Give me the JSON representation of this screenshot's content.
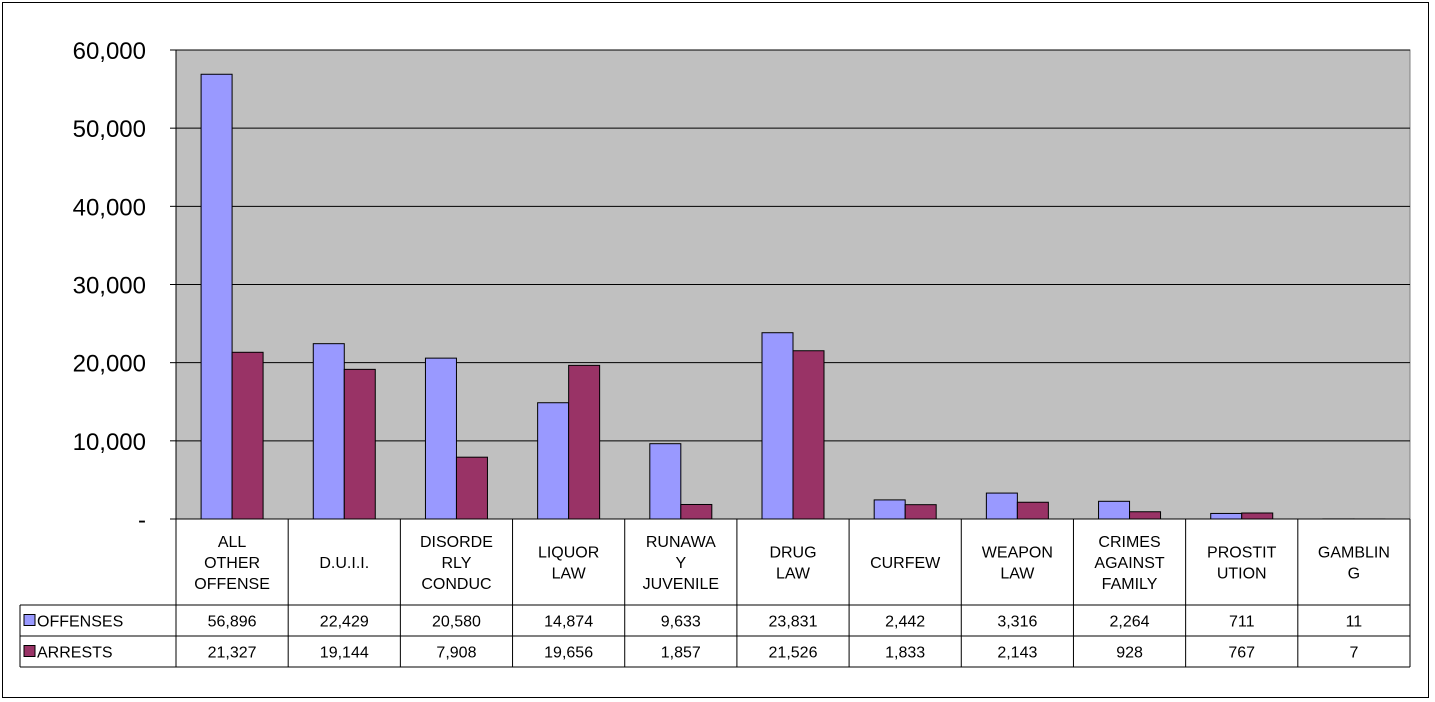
{
  "chart_data": {
    "type": "bar",
    "title": "",
    "xlabel": "",
    "ylabel": "",
    "ylim": [
      0,
      60000
    ],
    "yticks": [
      0,
      10000,
      20000,
      30000,
      40000,
      50000,
      60000
    ],
    "ytick_labels": [
      "-",
      "10,000",
      "20,000",
      "30,000",
      "40,000",
      "50,000",
      "60,000"
    ],
    "grid": true,
    "plot_background": "#c0c0c0",
    "data_table": true,
    "categories": [
      [
        "ALL",
        "OTHER",
        "OFFENSE"
      ],
      [
        "D.U.I.I."
      ],
      [
        "DISORDE",
        "RLY",
        "CONDUC"
      ],
      [
        "LIQUOR",
        "LAW"
      ],
      [
        "RUNAWA",
        "Y",
        "JUVENILE"
      ],
      [
        "DRUG",
        "LAW"
      ],
      [
        "CURFEW"
      ],
      [
        "WEAPON",
        "LAW"
      ],
      [
        "CRIMES",
        "AGAINST",
        "FAMILY"
      ],
      [
        "PROSTIT",
        "UTION"
      ],
      [
        "GAMBLIN",
        "G"
      ]
    ],
    "series": [
      {
        "name": "OFFENSES",
        "color": "#9999ff",
        "values": [
          56896,
          22429,
          20580,
          14874,
          9633,
          23831,
          2442,
          3316,
          2264,
          711,
          11
        ],
        "labels": [
          "56,896",
          "22,429",
          "20,580",
          "14,874",
          "9,633",
          "23,831",
          "2,442",
          "3,316",
          "2,264",
          "711",
          "11"
        ]
      },
      {
        "name": "ARRESTS",
        "color": "#993366",
        "values": [
          21327,
          19144,
          7908,
          19656,
          1857,
          21526,
          1833,
          2143,
          928,
          767,
          7
        ],
        "labels": [
          "21,327",
          "19,144",
          "7,908",
          "19,656",
          "1,857",
          "21,526",
          "1,833",
          "2,143",
          "928",
          "767",
          "7"
        ]
      }
    ]
  }
}
